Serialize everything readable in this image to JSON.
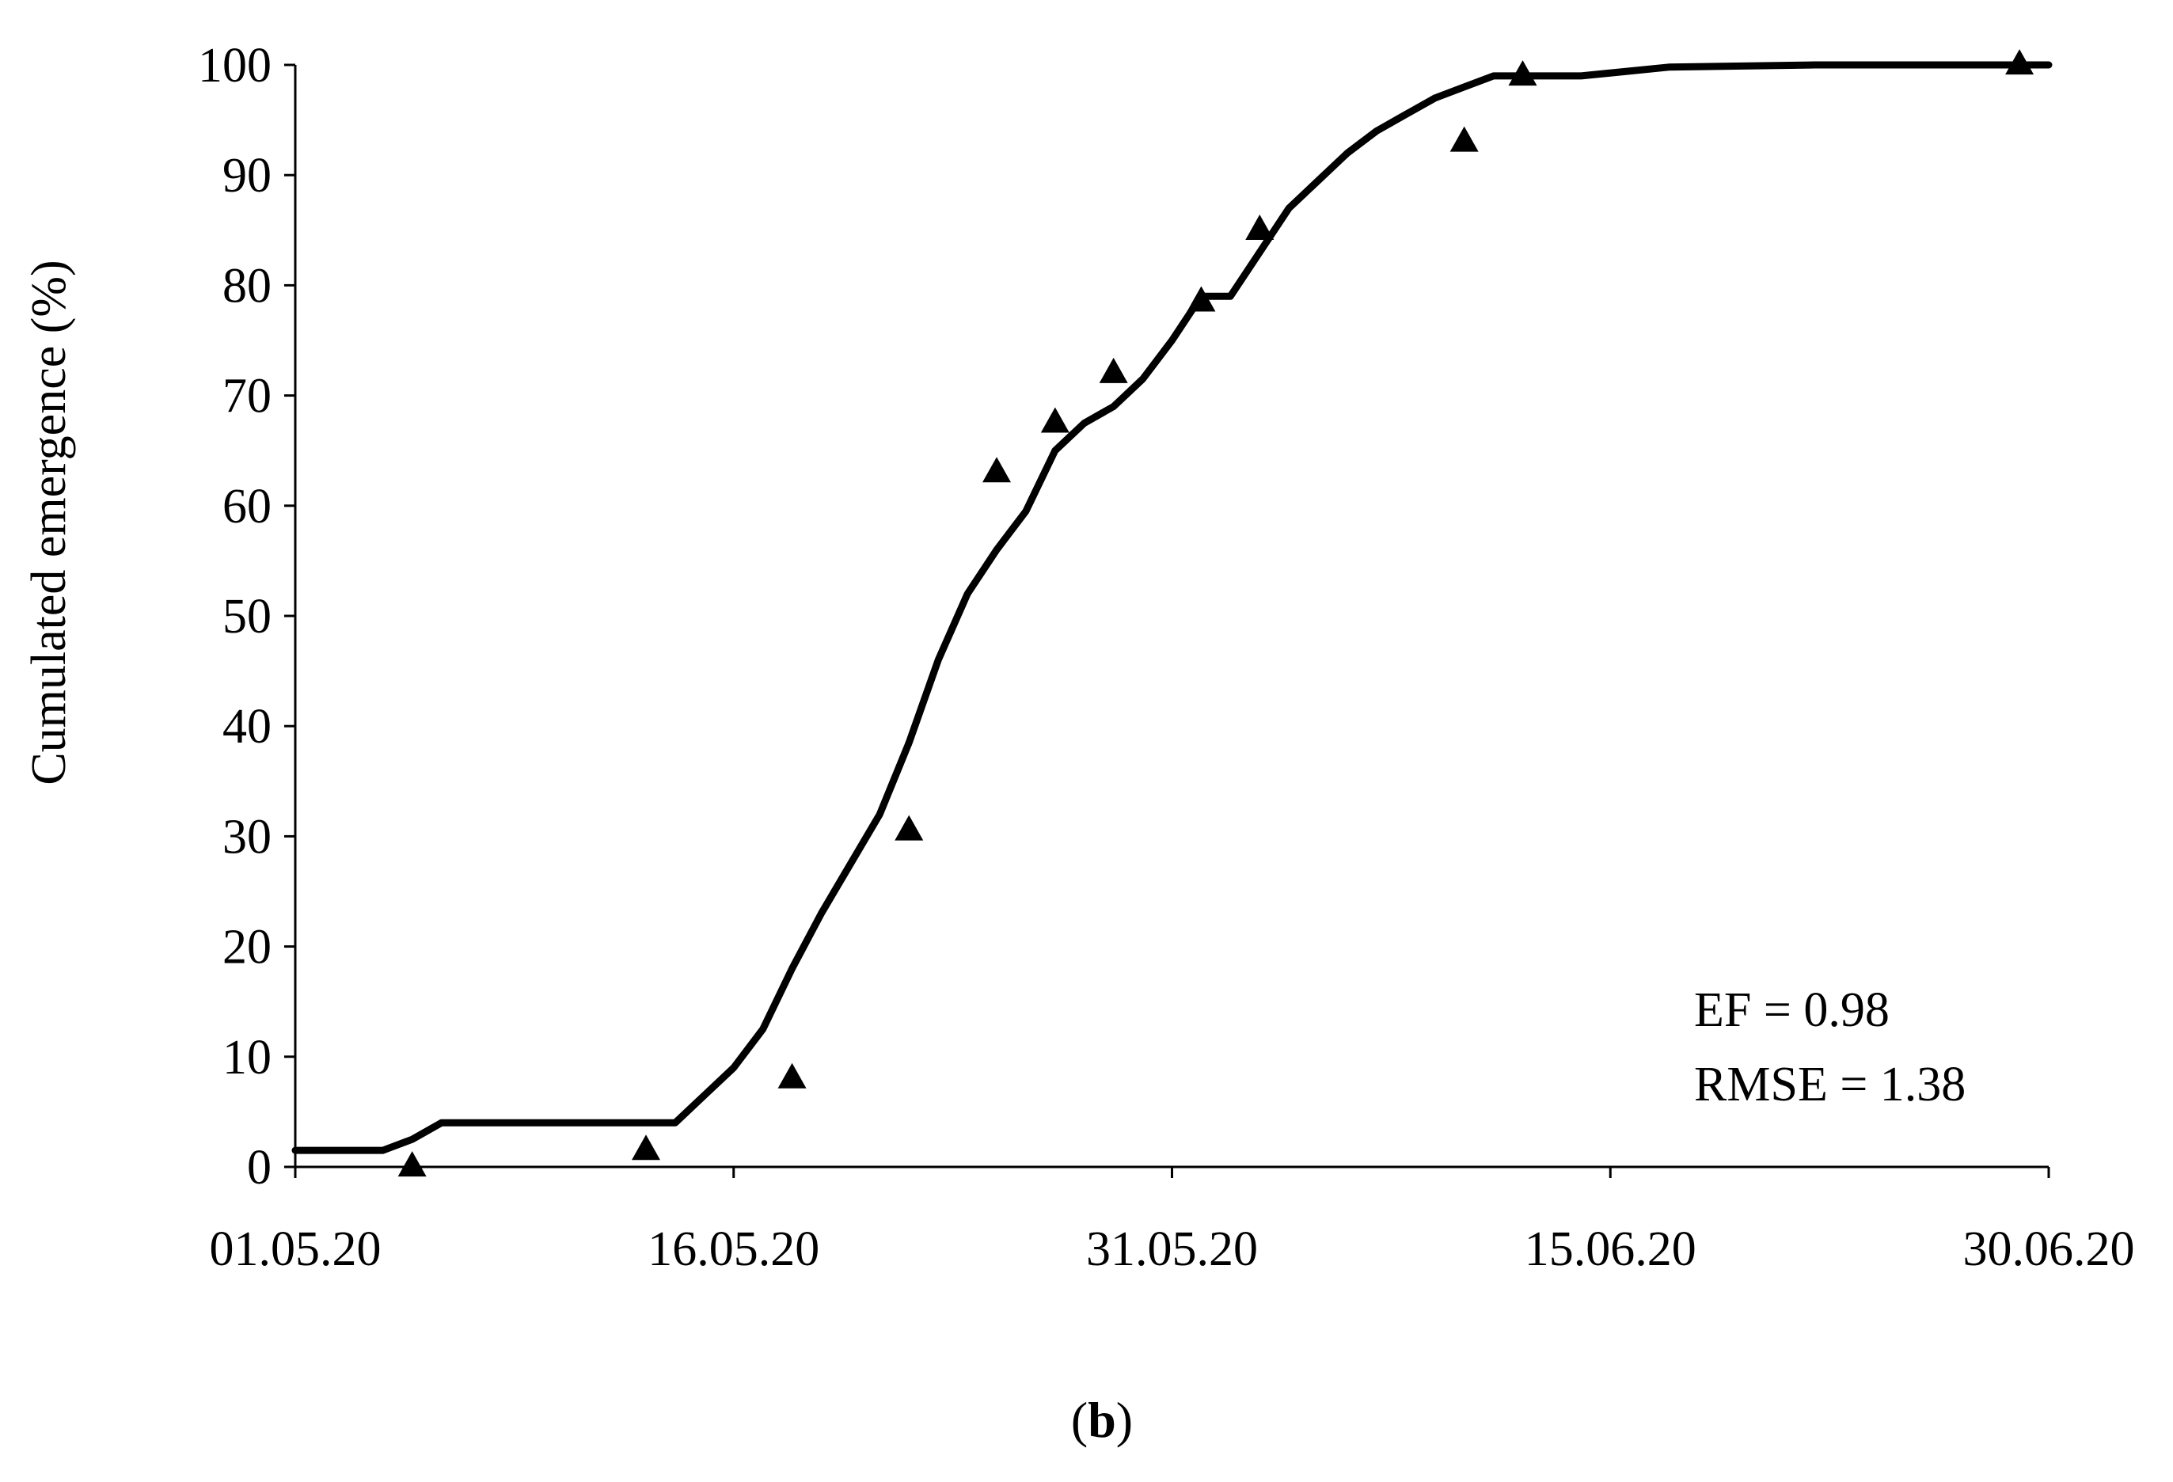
{
  "chart_data": {
    "type": "line",
    "xlabel": "",
    "ylabel": "Cumulated emergence (%)",
    "x_axis": {
      "type": "date",
      "range": [
        "01.05.20",
        "30.06.20"
      ],
      "ticks": [
        "01.05.20",
        "16.05.20",
        "31.05.20",
        "15.06.20",
        "30.06.20"
      ]
    },
    "y_axis": {
      "range": [
        0,
        100
      ],
      "ticks": [
        "0",
        "10",
        "20",
        "30",
        "40",
        "50",
        "60",
        "70",
        "80",
        "90",
        "100"
      ]
    },
    "grid": false,
    "legend": "none",
    "series": [
      {
        "kind": "line",
        "points": [
          [
            "01.05.20",
            1.5
          ],
          [
            "04.05.20",
            1.5
          ],
          [
            "05.05.20",
            2.5
          ],
          [
            "06.05.20",
            4
          ],
          [
            "08.05.20",
            4
          ],
          [
            "13.05.20",
            4
          ],
          [
            "14.05.20",
            4
          ],
          [
            "15.05.20",
            6.5
          ],
          [
            "16.05.20",
            9
          ],
          [
            "17.05.20",
            12.5
          ],
          [
            "18.05.20",
            18
          ],
          [
            "19.05.20",
            23
          ],
          [
            "20.05.20",
            27.5
          ],
          [
            "21.05.20",
            32
          ],
          [
            "22.05.20",
            38.5
          ],
          [
            "23.05.20",
            46
          ],
          [
            "24.05.20",
            52
          ],
          [
            "25.05.20",
            56
          ],
          [
            "26.05.20",
            59.5
          ],
          [
            "27.05.20",
            65
          ],
          [
            "28.05.20",
            67.5
          ],
          [
            "29.05.20",
            69
          ],
          [
            "30.05.20",
            71.5
          ],
          [
            "31.05.20",
            75
          ],
          [
            "01.06.20",
            79
          ],
          [
            "02.06.20",
            79
          ],
          [
            "03.06.20",
            83
          ],
          [
            "04.06.20",
            87
          ],
          [
            "05.06.20",
            89.5
          ],
          [
            "06.06.20",
            92
          ],
          [
            "07.06.20",
            94
          ],
          [
            "08.06.20",
            95.5
          ],
          [
            "09.06.20",
            97
          ],
          [
            "10.06.20",
            98
          ],
          [
            "11.06.20",
            99
          ],
          [
            "12.06.20",
            99
          ],
          [
            "14.06.20",
            99
          ],
          [
            "17.06.20",
            99.8
          ],
          [
            "22.06.20",
            100
          ],
          [
            "30.06.20",
            100
          ]
        ]
      },
      {
        "kind": "scatter",
        "marker": "triangle",
        "points": [
          [
            "05.05.20",
            0
          ],
          [
            "13.05.20",
            1.5
          ],
          [
            "18.05.20",
            8
          ],
          [
            "22.05.20",
            30.5
          ],
          [
            "25.05.20",
            63
          ],
          [
            "27.05.20",
            67.5
          ],
          [
            "29.05.20",
            72
          ],
          [
            "01.06.20",
            78.5
          ],
          [
            "03.06.20",
            85
          ],
          [
            "10.06.20",
            93
          ],
          [
            "12.06.20",
            99
          ],
          [
            "29.06.20",
            100
          ]
        ]
      }
    ],
    "annotations": [
      "EF = 0.98",
      "RMSE = 1.38"
    ],
    "colors": {
      "line": "#000000",
      "marker": "#000000",
      "axis": "#000000"
    }
  },
  "panel_label": {
    "open": "(",
    "letter": "b",
    "close": ")"
  }
}
